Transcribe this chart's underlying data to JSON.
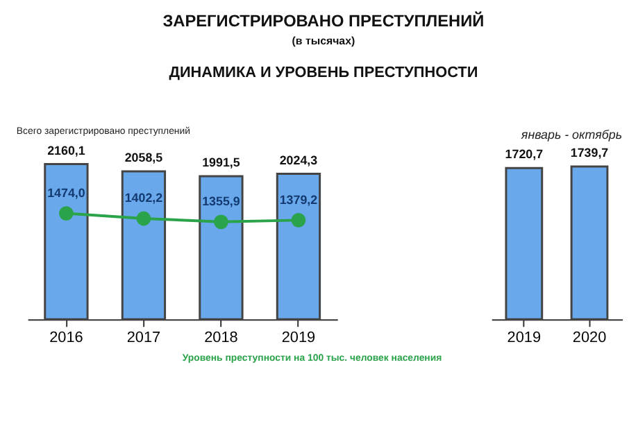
{
  "chart_data": [
    {
      "type": "bar",
      "title": "ЗАРЕГИСТРИРОВАНО ПРЕСТУПЛЕНИЙ",
      "subtitle": "(в тысячах)",
      "annotations": [
        "ДИНАМИКА И УРОВЕНЬ ПРЕСТУПНОСТИ"
      ],
      "categories": [
        "2016",
        "2017",
        "2018",
        "2019"
      ],
      "grid": false,
      "series": [
        {
          "name": "Всего зарегистрировано преступлений",
          "type": "bar",
          "color": "#6aa8ec",
          "values": [
            2160.1,
            2058.5,
            1991.5,
            2024.3
          ],
          "value_labels": [
            "2160,1",
            "2058,5",
            "1991,5",
            "2024,3"
          ]
        },
        {
          "name": "Уровень преступности на 100 тыс. человек населения",
          "type": "line",
          "color": "#2aa34a",
          "marker": "circle",
          "line_style": "solid",
          "values": [
            1474.0,
            1402.2,
            1355.9,
            1379.2
          ],
          "value_labels": [
            "1474,0",
            "1402,2",
            "1355,9",
            "1379,2"
          ]
        }
      ]
    },
    {
      "type": "bar",
      "title": "январь - октябрь",
      "categories": [
        "2019",
        "2020"
      ],
      "grid": false,
      "series": [
        {
          "type": "bar",
          "color": "#6aa8ec",
          "values": [
            1720.7,
            1739.7
          ],
          "value_labels": [
            "1720,7",
            "1739,7"
          ]
        }
      ]
    }
  ]
}
